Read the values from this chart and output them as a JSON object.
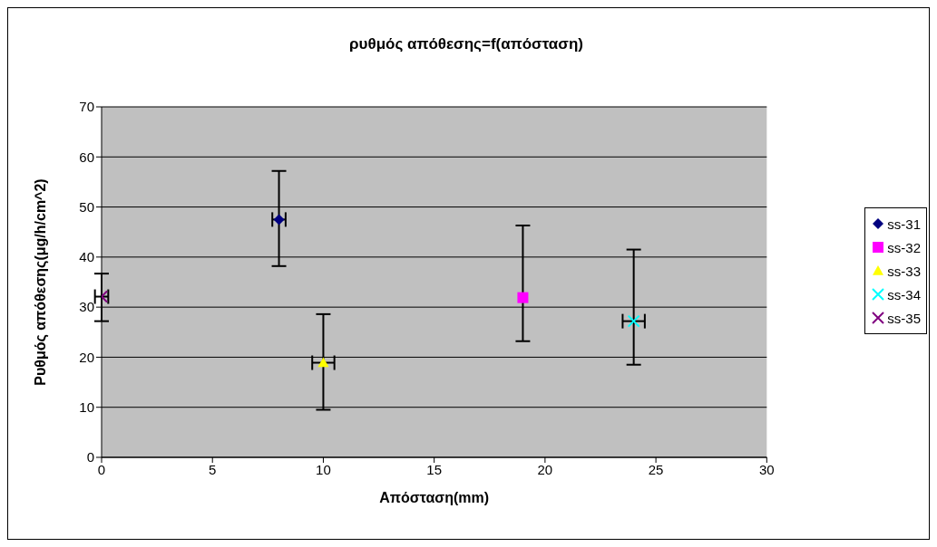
{
  "chart_data": {
    "type": "scatter",
    "title": "ρυθμός απόθεσης=f(απόσταση)",
    "xlabel": "Απόσταση(mm)",
    "ylabel": "Ρυθμός απόθεσης(μg/h/cm^2)",
    "xlim": [
      0,
      30
    ],
    "xticks": [
      0,
      5,
      10,
      15,
      20,
      25,
      30
    ],
    "ylim": [
      0,
      70
    ],
    "yticks": [
      0,
      10,
      20,
      30,
      40,
      50,
      60,
      70
    ],
    "grid": "y",
    "legend": "right",
    "series": [
      {
        "name": "ss-31",
        "color": "#000080",
        "marker": "diamond",
        "x": [
          8
        ],
        "values": [
          47.5
        ],
        "errors": [
          [
            38.2,
            57.2
          ]
        ],
        "xerrors": [
          0.3
        ]
      },
      {
        "name": "ss-32",
        "color": "#ff00ff",
        "marker": "square",
        "x": [
          19
        ],
        "values": [
          31.9
        ],
        "errors": [
          [
            23.2,
            46.3
          ]
        ]
      },
      {
        "name": "ss-33",
        "color": "#ffff00",
        "marker": "triangle",
        "x": [
          10
        ],
        "values": [
          18.9
        ],
        "errors": [
          [
            9.5,
            28.6
          ]
        ],
        "xerrors": [
          0.5
        ]
      },
      {
        "name": "ss-34",
        "color": "#00ffff",
        "marker": "cross",
        "x": [
          24
        ],
        "values": [
          27.2
        ],
        "errors": [
          [
            18.5,
            41.5
          ]
        ],
        "xerrors": [
          0.5
        ]
      },
      {
        "name": "ss-35",
        "color": "#800080",
        "marker": "cross",
        "x": [
          0
        ],
        "values": [
          32.1
        ],
        "errors": [
          [
            27.2,
            36.7
          ]
        ],
        "xerrors": [
          0.3
        ]
      }
    ]
  }
}
